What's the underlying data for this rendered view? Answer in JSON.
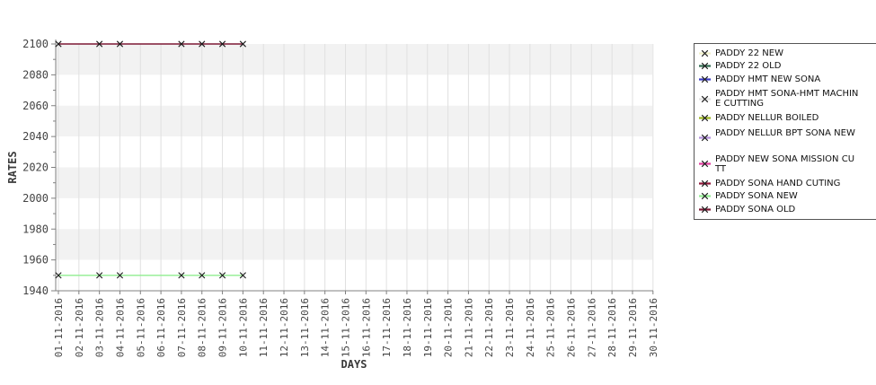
{
  "chart_data": {
    "type": "line",
    "title": "",
    "xlabel": "DAYS",
    "ylabel": "RATES",
    "ylim": [
      1940,
      2100
    ],
    "y_ticks": [
      2100,
      2080,
      2060,
      2040,
      2020,
      2000,
      1980,
      1960,
      1940
    ],
    "y_minor_tick_step": 10,
    "grid": true,
    "legend_position": "right-outside",
    "x_tick_labels": [
      "01-11-2016",
      "02-11-2016",
      "03-11-2016",
      "04-11-2016",
      "05-11-2016",
      "06-11-2016",
      "07-11-2016",
      "08-11-2016",
      "09-11-2016",
      "10-11-2016",
      "11-11-2016",
      "12-11-2016",
      "13-11-2016",
      "14-11-2016",
      "15-11-2016",
      "16-11-2016",
      "17-11-2016",
      "18-11-2016",
      "19-11-2016",
      "20-11-2016",
      "21-11-2016",
      "22-11-2016",
      "23-11-2016",
      "24-11-2016",
      "25-11-2016",
      "26-11-2016",
      "27-11-2016",
      "28-11-2016",
      "29-11-2016",
      "30-11-2016"
    ],
    "series": [
      {
        "name": "PADDY SONA OLD",
        "color": "#7D1935",
        "marker": "x",
        "x_days": [
          1,
          3,
          4,
          7,
          8,
          9,
          10
        ],
        "values": [
          2100,
          2100,
          2100,
          2100,
          2100,
          2100,
          2100
        ]
      },
      {
        "name": "PADDY SONA NEW",
        "color": "#90EE90",
        "marker": "x",
        "x_days": [
          1,
          3,
          4,
          7,
          8,
          9,
          10
        ],
        "values": [
          1950,
          1950,
          1950,
          1950,
          1950,
          1950,
          1950
        ]
      }
    ]
  },
  "legend": {
    "items": [
      {
        "label": "PADDY 22 NEW",
        "color": "#F0F0C8"
      },
      {
        "label": "PADDY 22 OLD",
        "color": "#2F6B4F"
      },
      {
        "label": "PADDY HMT NEW SONA",
        "color": "#3B3BC4"
      },
      {
        "label": "PADDY HMT SONA-HMT MACHIN",
        "label2": "E CUTTING",
        "color": "#E3E3E3"
      },
      {
        "label": "PADDY NELLUR BOILED",
        "color": "#9AB41E"
      },
      {
        "label": "PADDY NELLUR BPT SONA NEW",
        "label2": "",
        "color": "#B28FDC"
      },
      {
        "label": "PADDY NEW SONA MISSION CU",
        "label2": "TT",
        "color": "#E23C9E"
      },
      {
        "label": "PADDY SONA HAND CUTING",
        "color": "#8E1638"
      },
      {
        "label": "PADDY SONA NEW",
        "color": "#90EE90"
      },
      {
        "label": "PADDY SONA OLD",
        "color": "#7D1935"
      }
    ]
  },
  "colors": {
    "band_gray": "#F2F2F2",
    "band_white": "#FFFFFF",
    "gridline": "#E0E0E0",
    "axis": "#808080",
    "tick_text": "#444444",
    "axis_title_text": "#3A3A3A",
    "marker_stroke": "#1A1A1A",
    "legend_border": "#555555"
  }
}
